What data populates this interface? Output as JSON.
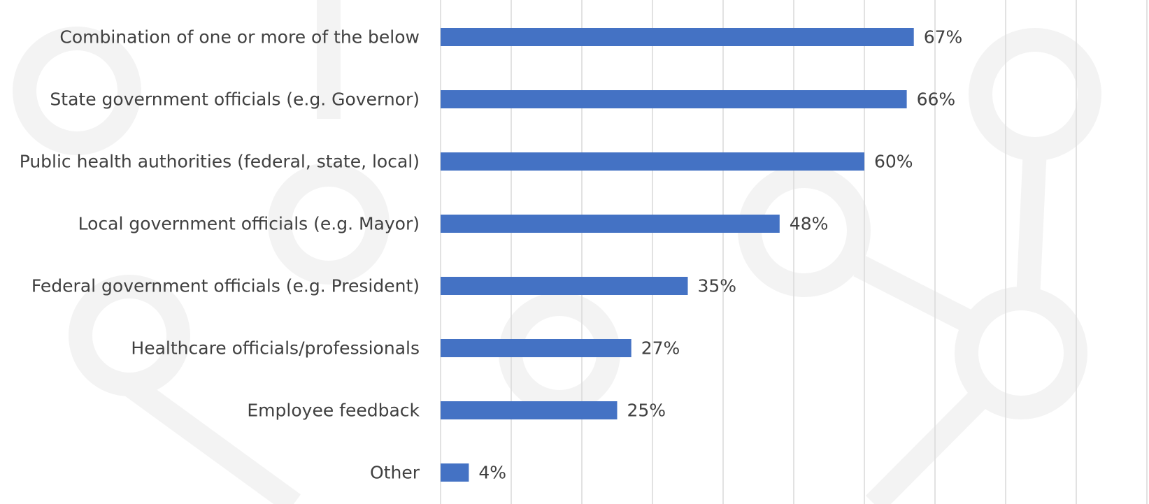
{
  "chart_data": {
    "type": "bar",
    "orientation": "horizontal",
    "categories": [
      "Combination of one or more of the below",
      "State government officials (e.g. Governor)",
      "Public health authorities (federal, state, local)",
      "Local government officials (e.g. Mayor)",
      "Federal government officials (e.g. President)",
      "Healthcare officials/professionals",
      "Employee feedback",
      "Other"
    ],
    "values": [
      67,
      66,
      60,
      48,
      35,
      27,
      25,
      4
    ],
    "value_labels": [
      "67%",
      "66%",
      "60%",
      "48%",
      "35%",
      "27%",
      "25%",
      "4%"
    ],
    "xlim": [
      0,
      100
    ],
    "grid": true,
    "legend": "none",
    "bar_color": "#4472C4",
    "title": "",
    "xlabel": "",
    "ylabel": ""
  },
  "colors": {
    "grid": "#d9d9d9",
    "text": "#404040",
    "background_decoration": "#f3f3f3"
  }
}
